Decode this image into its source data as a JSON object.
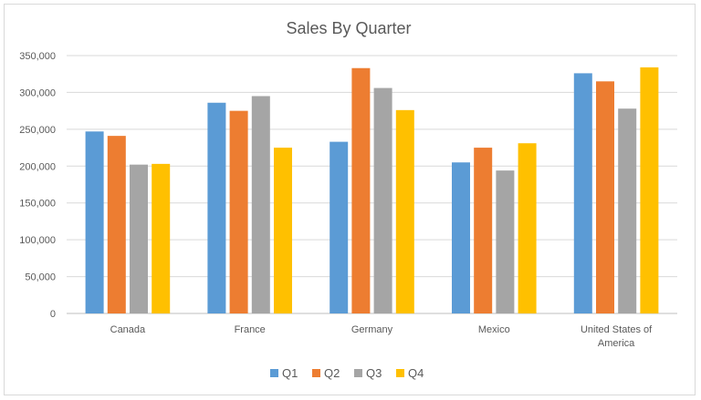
{
  "chart_data": {
    "type": "bar",
    "title": "Sales By Quarter",
    "xlabel": "",
    "ylabel": "",
    "categories": [
      "Canada",
      "France",
      "Germany",
      "Mexico",
      "United States of America"
    ],
    "category_label_lines": [
      [
        "Canada"
      ],
      [
        "France"
      ],
      [
        "Germany"
      ],
      [
        "Mexico"
      ],
      [
        "United States of",
        "America"
      ]
    ],
    "series": [
      {
        "name": "Q1",
        "color": "#5b9bd5",
        "values": [
          247000,
          286000,
          233000,
          205000,
          326000
        ]
      },
      {
        "name": "Q2",
        "color": "#ed7d31",
        "values": [
          241000,
          275000,
          333000,
          225000,
          315000
        ]
      },
      {
        "name": "Q3",
        "color": "#a5a5a5",
        "values": [
          202000,
          295000,
          306000,
          194000,
          278000
        ]
      },
      {
        "name": "Q4",
        "color": "#ffc000",
        "values": [
          203000,
          225000,
          276000,
          231000,
          334000
        ]
      }
    ],
    "ylim": [
      0,
      350000
    ],
    "yticks": [
      0,
      50000,
      100000,
      150000,
      200000,
      250000,
      300000,
      350000
    ],
    "ytick_labels": [
      "0",
      "50,000",
      "100,000",
      "150,000",
      "200,000",
      "250,000",
      "300,000",
      "350,000"
    ],
    "grid": true,
    "legend_position": "bottom"
  }
}
